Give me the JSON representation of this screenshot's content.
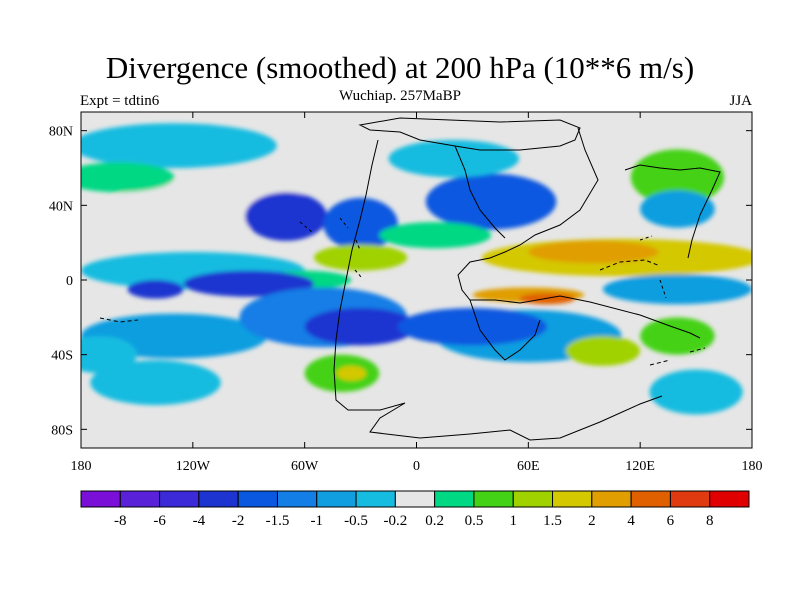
{
  "title": "Divergence (smoothed) at 200 hPa (10**6 m/s)",
  "subtitle": "Wuchiap. 257MaBP",
  "left_label": "Expt = tdtin6",
  "right_label": "JJA",
  "chart_data": {
    "type": "heatmap",
    "variable": "Divergence (smoothed) at 200 hPa",
    "units": "10**6 m/s",
    "season": "JJA",
    "experiment": "tdtin6",
    "period": "Wuchiap. 257MaBP",
    "x_axis": {
      "range": [
        -180,
        180
      ],
      "ticks": [
        -180,
        -120,
        -60,
        0,
        60,
        120,
        180
      ],
      "tick_labels": [
        "180",
        "120W",
        "60W",
        "0",
        "60E",
        "120E",
        "180"
      ]
    },
    "y_axis": {
      "range": [
        -90,
        90
      ],
      "ticks": [
        80,
        40,
        0,
        -40,
        -80
      ],
      "tick_labels": [
        "80N",
        "40N",
        "0",
        "40S",
        "80S"
      ]
    },
    "colorbar": {
      "labels": [
        "-8",
        "-6",
        "-4",
        "-2",
        "-1.5",
        "-1",
        "-0.5",
        "-0.2",
        "0.2",
        "0.5",
        "1",
        "1.5",
        "2",
        "4",
        "6",
        "8"
      ],
      "colors": [
        "#7a10d8",
        "#5a22d8",
        "#3c2ad8",
        "#1e34d0",
        "#0a58e0",
        "#127ee6",
        "#109ee0",
        "#16bce0",
        "#e6e6e6",
        "#00d884",
        "#44d216",
        "#a0d200",
        "#d4c800",
        "#e09e00",
        "#e06000",
        "#e03a10",
        "#e00000"
      ]
    },
    "regions": [
      {
        "lon": -110,
        "lat": 40,
        "rx": 55,
        "ry": 14,
        "level": 8
      },
      {
        "lon": -130,
        "lat": 72,
        "rx": 55,
        "ry": 12,
        "level": 7
      },
      {
        "lon": -160,
        "lat": 55,
        "rx": 30,
        "ry": 8,
        "level": 9
      },
      {
        "lon": -70,
        "lat": 34,
        "rx": 22,
        "ry": 13,
        "level": 3
      },
      {
        "lon": -30,
        "lat": 30,
        "rx": 20,
        "ry": 14,
        "level": 4
      },
      {
        "lon": 40,
        "lat": 42,
        "rx": 35,
        "ry": 15,
        "level": 4
      },
      {
        "lon": 20,
        "lat": 65,
        "rx": 35,
        "ry": 10,
        "level": 7
      },
      {
        "lon": 10,
        "lat": 24,
        "rx": 30,
        "ry": 7,
        "level": 9
      },
      {
        "lon": 110,
        "lat": 12,
        "rx": 75,
        "ry": 10,
        "level": 12
      },
      {
        "lon": 95,
        "lat": 15,
        "rx": 35,
        "ry": 6,
        "level": 13
      },
      {
        "lon": -30,
        "lat": 12,
        "rx": 25,
        "ry": 7,
        "level": 11
      },
      {
        "lon": 140,
        "lat": 55,
        "rx": 25,
        "ry": 15,
        "level": 10
      },
      {
        "lon": 140,
        "lat": 38,
        "rx": 20,
        "ry": 10,
        "level": 6
      },
      {
        "lon": -120,
        "lat": 5,
        "rx": 60,
        "ry": 10,
        "level": 7
      },
      {
        "lon": -140,
        "lat": -5,
        "rx": 15,
        "ry": 5,
        "level": 3
      },
      {
        "lon": -60,
        "lat": 0,
        "rx": 25,
        "ry": 5,
        "level": 9
      },
      {
        "lon": -90,
        "lat": -2,
        "rx": 35,
        "ry": 7,
        "level": 3
      },
      {
        "lon": -130,
        "lat": -30,
        "rx": 50,
        "ry": 12,
        "level": 6
      },
      {
        "lon": -50,
        "lat": -20,
        "rx": 45,
        "ry": 16,
        "level": 5
      },
      {
        "lon": -30,
        "lat": -25,
        "rx": 30,
        "ry": 10,
        "level": 3
      },
      {
        "lon": 60,
        "lat": -30,
        "rx": 50,
        "ry": 14,
        "level": 6
      },
      {
        "lon": 30,
        "lat": -25,
        "rx": 40,
        "ry": 10,
        "level": 4
      },
      {
        "lon": 140,
        "lat": -5,
        "rx": 40,
        "ry": 8,
        "level": 6
      },
      {
        "lon": 60,
        "lat": -8,
        "rx": 30,
        "ry": 4,
        "level": 13
      },
      {
        "lon": 70,
        "lat": -10,
        "rx": 15,
        "ry": 3,
        "level": 14
      },
      {
        "lon": 140,
        "lat": -30,
        "rx": 20,
        "ry": 10,
        "level": 10
      },
      {
        "lon": 100,
        "lat": -38,
        "rx": 20,
        "ry": 8,
        "level": 11
      },
      {
        "lon": -140,
        "lat": -55,
        "rx": 35,
        "ry": 12,
        "level": 7
      },
      {
        "lon": -40,
        "lat": -50,
        "rx": 20,
        "ry": 10,
        "level": 10
      },
      {
        "lon": -35,
        "lat": -50,
        "rx": 8,
        "ry": 4,
        "level": 12
      },
      {
        "lon": 150,
        "lat": -60,
        "rx": 25,
        "ry": 12,
        "level": 7
      },
      {
        "lon": -170,
        "lat": -40,
        "rx": 20,
        "ry": 10,
        "level": 7
      }
    ]
  }
}
